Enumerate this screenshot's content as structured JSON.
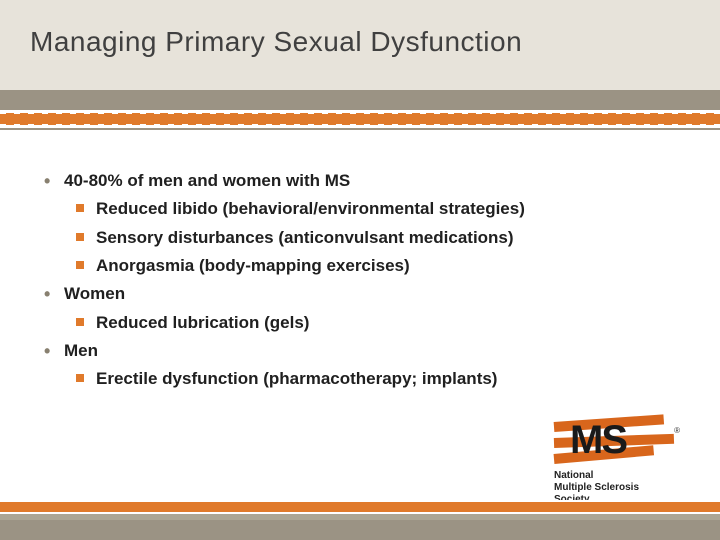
{
  "colors": {
    "slide_bg": "#9b9384",
    "title_bg": "#e7e3da",
    "accent": "#e07a2b",
    "accent_dark": "#d8661c",
    "text": "#202020",
    "title_text": "#404040",
    "bullet_lvl1": "#888070",
    "white": "#ffffff",
    "bottom_gray": "#aca695"
  },
  "typography": {
    "title_fontsize": 28,
    "body_fontsize": 17,
    "body_weight": "bold",
    "logo_caption_fontsize": 10
  },
  "title": "Managing Primary Sexual Dysfunction",
  "items": [
    {
      "level": 1,
      "text": "40-80% of men and women with MS"
    },
    {
      "level": 2,
      "text": "Reduced libido (behavioral/environmental strategies)"
    },
    {
      "level": 2,
      "text": "Sensory disturbances (anticonvulsant medications)"
    },
    {
      "level": 2,
      "text": "Anorgasmia (body-mapping exercises)"
    },
    {
      "level": 1,
      "text": "Women"
    },
    {
      "level": 2,
      "text": "Reduced lubrication (gels)"
    },
    {
      "level": 1,
      "text": "Men"
    },
    {
      "level": 2,
      "text": "Erectile dysfunction (pharmacotherapy; implants)"
    }
  ],
  "logo": {
    "mark_text": "MS",
    "caption_line1": "National",
    "caption_line2": "Multiple Sclerosis",
    "caption_line3": "Society"
  }
}
